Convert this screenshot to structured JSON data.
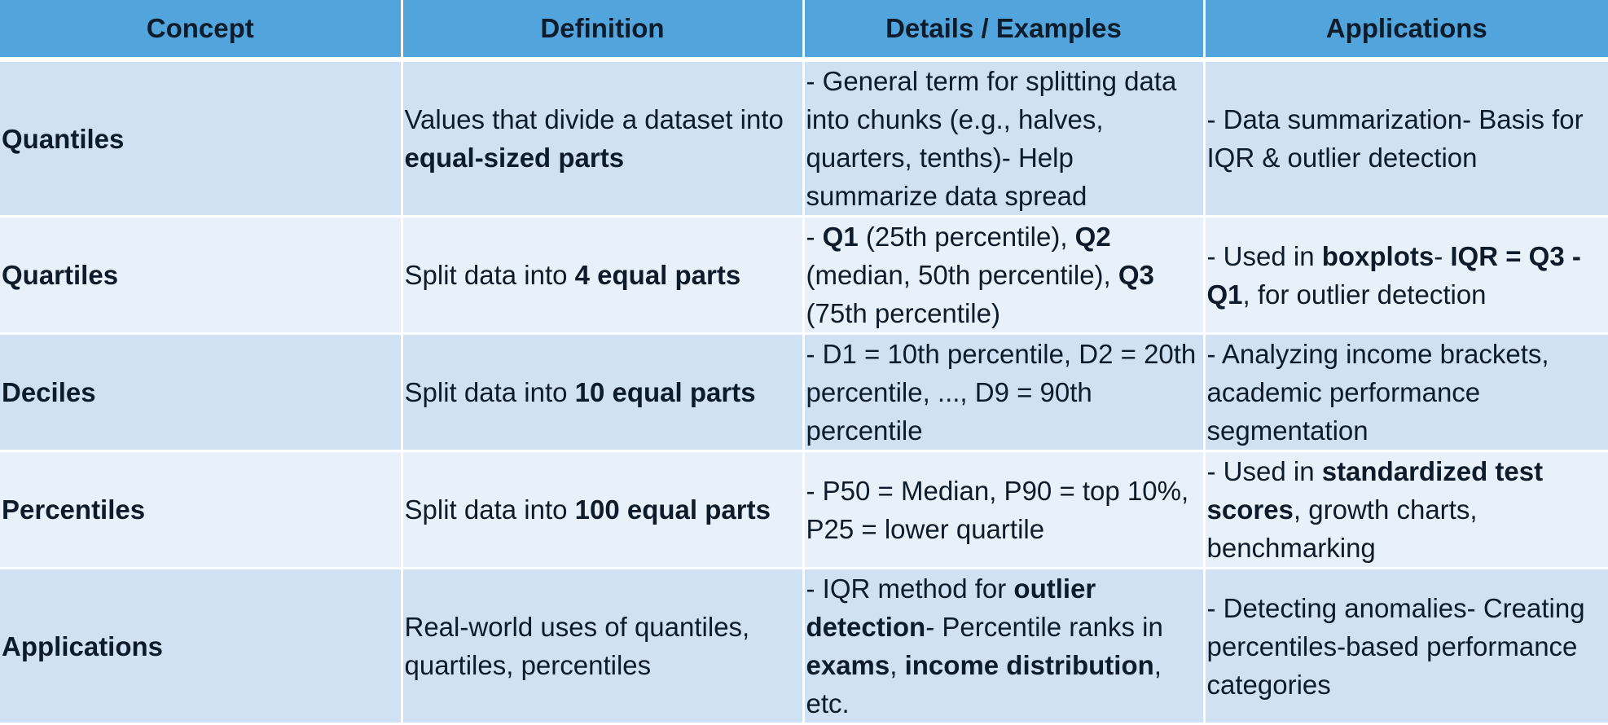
{
  "headers": [
    "Concept",
    "Definition",
    "Details / Examples",
    "Applications"
  ],
  "rows": [
    {
      "concept": "Quantiles",
      "definition": [
        {
          "t": "Values that divide a dataset into "
        },
        {
          "t": "equal-sized parts",
          "b": true
        }
      ],
      "details": [
        {
          "t": "- General term for splitting data into chunks (e.g., halves, quarters, tenths)- Help summarize data spread"
        }
      ],
      "applications": [
        {
          "t": "- Data summarization- Basis for IQR & outlier detection"
        }
      ]
    },
    {
      "concept": "Quartiles",
      "definition": [
        {
          "t": "Split data into "
        },
        {
          "t": "4 equal parts",
          "b": true
        }
      ],
      "details": [
        {
          "t": "- "
        },
        {
          "t": "Q1",
          "b": true
        },
        {
          "t": " (25th percentile), "
        },
        {
          "t": "Q2",
          "b": true
        },
        {
          "t": " (median, 50th percentile), "
        },
        {
          "t": "Q3",
          "b": true
        },
        {
          "t": " (75th percentile)"
        }
      ],
      "applications": [
        {
          "t": "- Used in "
        },
        {
          "t": "boxplots",
          "b": true
        },
        {
          "t": "- "
        },
        {
          "t": "IQR = Q3 - Q1",
          "b": true
        },
        {
          "t": ", for outlier detection"
        }
      ]
    },
    {
      "concept": "Deciles",
      "definition": [
        {
          "t": "Split data into "
        },
        {
          "t": "10 equal parts",
          "b": true
        }
      ],
      "details": [
        {
          "t": "- D1 = 10th percentile, D2 = 20th percentile, ..., D9 = 90th percentile"
        }
      ],
      "applications": [
        {
          "t": "- Analyzing income brackets, academic performance segmentation"
        }
      ]
    },
    {
      "concept": "Percentiles",
      "definition": [
        {
          "t": "Split data into "
        },
        {
          "t": "100 equal parts",
          "b": true
        }
      ],
      "details": [
        {
          "t": "- P50 = Median, P90 = top 10%, P25 = lower quartile"
        }
      ],
      "applications": [
        {
          "t": "- Used in "
        },
        {
          "t": "standardized test scores",
          "b": true
        },
        {
          "t": ", growth charts, benchmarking"
        }
      ]
    },
    {
      "concept": "Applications",
      "definition": [
        {
          "t": "Real-world uses of quantiles, quartiles, percentiles"
        }
      ],
      "details": [
        {
          "t": "- IQR method for "
        },
        {
          "t": "outlier detection",
          "b": true
        },
        {
          "t": "- Percentile ranks in "
        },
        {
          "t": "exams",
          "b": true
        },
        {
          "t": ", "
        },
        {
          "t": "income distribution",
          "b": true
        },
        {
          "t": ", etc."
        }
      ],
      "applications": [
        {
          "t": "- Detecting anomalies- Creating percentiles-based performance categories"
        }
      ]
    }
  ]
}
